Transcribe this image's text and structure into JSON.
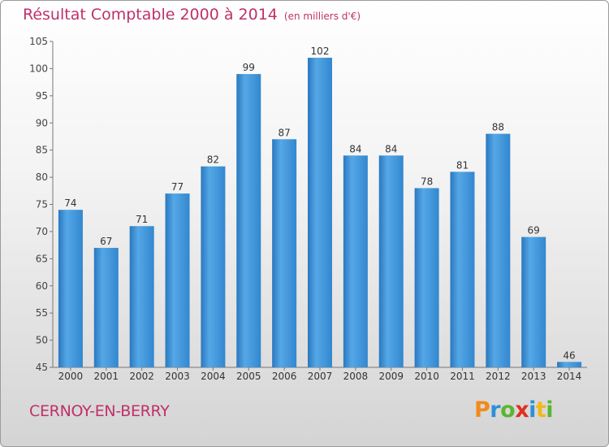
{
  "title": "Résultat Comptable 2000 à 2014",
  "unit": "(en milliers d'€)",
  "commune": "CERNOY-EN-BERRY",
  "logo": {
    "letters": [
      "P",
      "r",
      "o",
      "x",
      "i",
      "t",
      "i"
    ],
    "colors": [
      "#f08a1c",
      "#2f8fd8",
      "#5cb531",
      "#e0301e",
      "#2f8fd8",
      "#f0b81c",
      "#5cb531"
    ]
  },
  "colors": {
    "bar": "#3a93d8",
    "title": "#c0306a",
    "axis": "#555555"
  },
  "chart_data": {
    "type": "bar",
    "categories": [
      "2000",
      "2001",
      "2002",
      "2003",
      "2004",
      "2005",
      "2006",
      "2007",
      "2008",
      "2009",
      "2010",
      "2011",
      "2012",
      "2013",
      "2014"
    ],
    "values": [
      74,
      67,
      71,
      77,
      82,
      99,
      87,
      102,
      84,
      84,
      78,
      81,
      88,
      69,
      46
    ],
    "ylim": [
      45,
      105
    ],
    "yticks": [
      45,
      50,
      55,
      60,
      65,
      70,
      75,
      80,
      85,
      90,
      95,
      100,
      105
    ],
    "grid": false,
    "data_labels": true
  }
}
